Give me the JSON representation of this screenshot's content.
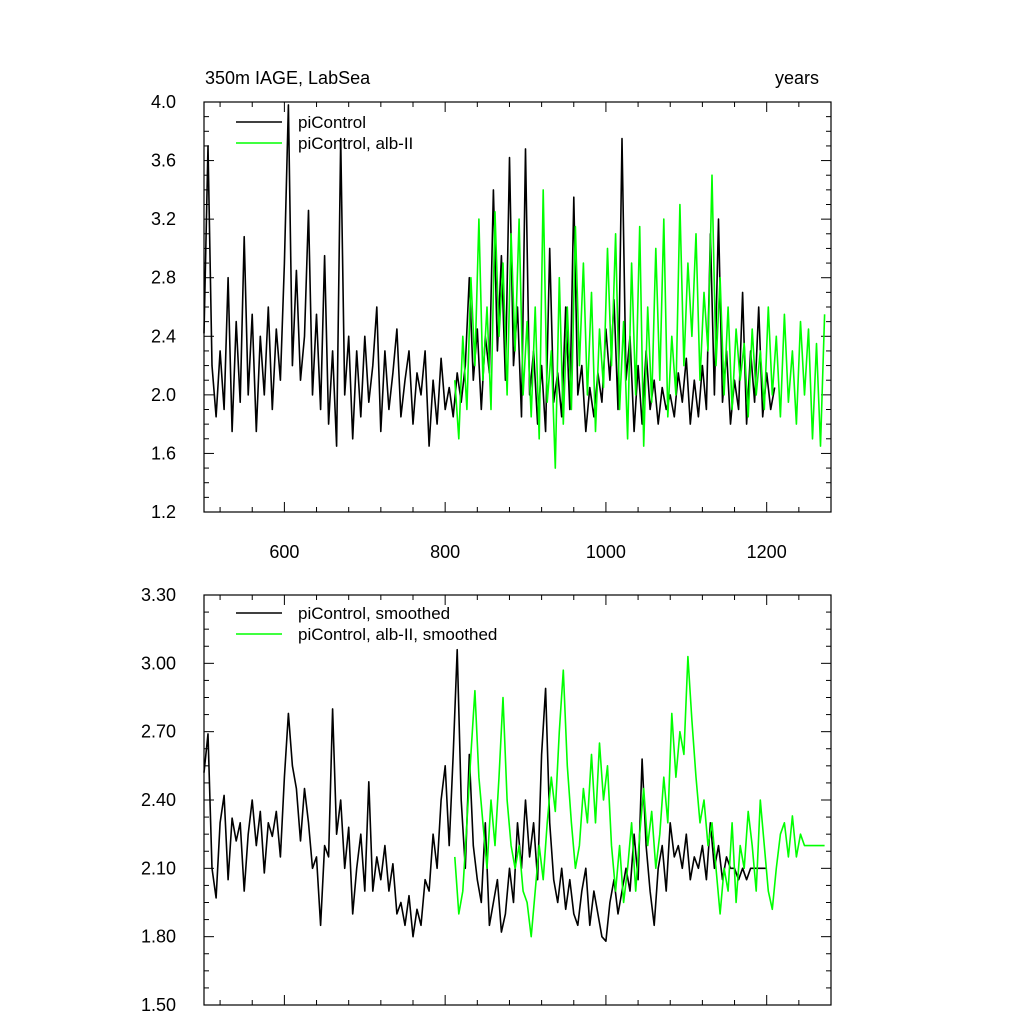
{
  "chart_data": [
    {
      "type": "line",
      "title_left": "350m IAGE, LabSea",
      "title_right": "years",
      "xlim": [
        500,
        1280
      ],
      "ylim": [
        1.2,
        4.0
      ],
      "xticks": [
        600,
        800,
        1000,
        1200
      ],
      "xtick_labels": [
        "600",
        "800",
        "1000",
        "1200"
      ],
      "yticks": [
        1.2,
        1.6,
        2.0,
        2.4,
        2.8,
        3.2,
        3.6,
        4.0
      ],
      "ytick_labels": [
        "1.2",
        "1.6",
        "2.0",
        "2.4",
        "2.8",
        "3.2",
        "3.6",
        "4.0"
      ],
      "legend_position": "top-left",
      "series": [
        {
          "name": "piControl",
          "color": "#000000",
          "x": [
            500,
            505,
            510,
            515,
            520,
            525,
            530,
            535,
            540,
            545,
            550,
            555,
            560,
            565,
            570,
            575,
            580,
            585,
            590,
            595,
            600,
            605,
            610,
            615,
            620,
            625,
            630,
            635,
            640,
            645,
            650,
            655,
            660,
            665,
            670,
            675,
            680,
            685,
            690,
            695,
            700,
            705,
            710,
            715,
            720,
            725,
            730,
            735,
            740,
            745,
            750,
            755,
            760,
            765,
            770,
            775,
            780,
            785,
            790,
            795,
            800,
            805,
            810,
            815,
            820,
            825,
            830,
            835,
            840,
            845,
            850,
            855,
            860,
            865,
            870,
            875,
            880,
            885,
            890,
            895,
            900,
            905,
            910,
            915,
            920,
            925,
            930,
            935,
            940,
            945,
            950,
            955,
            960,
            965,
            970,
            975,
            980,
            985,
            990,
            995,
            1000,
            1005,
            1010,
            1015,
            1020,
            1025,
            1030,
            1035,
            1040,
            1045,
            1050,
            1055,
            1060,
            1065,
            1070,
            1075,
            1080,
            1085,
            1090,
            1095,
            1100,
            1105,
            1110,
            1115,
            1120,
            1125,
            1130,
            1135,
            1140,
            1145,
            1150,
            1155,
            1160,
            1165,
            1170,
            1175,
            1180,
            1185,
            1190,
            1195,
            1200,
            1205,
            1210
          ],
          "y": [
            2.42,
            3.7,
            2.2,
            1.85,
            2.3,
            1.9,
            2.8,
            1.75,
            2.5,
            1.95,
            3.08,
            2.0,
            2.55,
            1.75,
            2.4,
            2.0,
            2.6,
            1.9,
            2.45,
            2.1,
            2.9,
            3.98,
            2.2,
            2.85,
            2.1,
            2.4,
            3.26,
            2.0,
            2.55,
            1.9,
            2.95,
            1.8,
            2.3,
            1.65,
            3.75,
            2.0,
            2.4,
            1.7,
            2.3,
            1.85,
            2.4,
            1.95,
            2.2,
            2.6,
            1.75,
            2.3,
            1.9,
            2.15,
            2.45,
            1.85,
            2.1,
            2.3,
            1.8,
            2.15,
            2.0,
            2.3,
            1.65,
            2.1,
            1.8,
            2.25,
            1.9,
            2.05,
            1.85,
            2.15,
            1.95,
            2.2,
            2.8,
            2.1,
            2.45,
            1.9,
            2.4,
            2.15,
            3.4,
            2.3,
            2.95,
            2.1,
            3.62,
            2.2,
            2.6,
            1.85,
            3.68,
            2.0,
            2.3,
            1.8,
            2.2,
            1.75,
            3.0,
            1.95,
            2.15,
            1.85,
            2.6,
            1.9,
            3.35,
            2.0,
            2.2,
            1.75,
            2.05,
            1.85,
            2.15,
            1.95,
            2.45,
            2.1,
            2.65,
            1.9,
            3.75,
            2.1,
            2.4,
            1.75,
            2.2,
            1.8,
            2.3,
            1.9,
            2.1,
            1.8,
            2.05,
            1.9,
            2.0,
            1.85,
            2.15,
            1.95,
            2.25,
            1.8,
            2.1,
            1.85,
            2.2,
            1.9,
            3.1,
            2.0,
            3.2,
            1.95,
            2.3,
            1.8,
            2.1,
            1.9,
            2.7,
            1.8,
            2.3,
            1.95,
            2.6,
            1.85,
            2.15,
            1.9,
            2.05
          ]
        },
        {
          "name": "piControl, alb-II",
          "color": "#00ff00",
          "x": [
            812,
            817,
            822,
            827,
            832,
            837,
            842,
            847,
            852,
            857,
            862,
            867,
            872,
            877,
            882,
            887,
            892,
            897,
            902,
            907,
            912,
            917,
            922,
            927,
            932,
            937,
            942,
            947,
            952,
            957,
            962,
            967,
            972,
            977,
            982,
            987,
            992,
            997,
            1002,
            1007,
            1012,
            1017,
            1022,
            1027,
            1032,
            1037,
            1042,
            1047,
            1052,
            1057,
            1062,
            1067,
            1072,
            1077,
            1082,
            1087,
            1092,
            1097,
            1102,
            1107,
            1112,
            1117,
            1122,
            1127,
            1132,
            1137,
            1142,
            1147,
            1152,
            1157,
            1162,
            1167,
            1172,
            1177,
            1182,
            1187,
            1192,
            1197,
            1202,
            1207,
            1212,
            1217,
            1222,
            1227,
            1232,
            1237,
            1242,
            1247,
            1252,
            1257,
            1262,
            1267,
            1272
          ],
          "y": [
            2.1,
            1.7,
            2.4,
            1.9,
            2.8,
            2.2,
            3.2,
            2.1,
            2.6,
            1.9,
            3.25,
            2.4,
            2.9,
            2.0,
            3.1,
            2.3,
            3.2,
            2.0,
            2.5,
            1.85,
            2.6,
            1.7,
            3.4,
            1.95,
            2.3,
            1.5,
            2.8,
            1.8,
            2.6,
            1.9,
            3.15,
            2.2,
            2.9,
            2.0,
            2.7,
            1.75,
            2.45,
            2.05,
            3.0,
            2.2,
            3.1,
            1.9,
            2.5,
            1.7,
            2.9,
            2.0,
            3.15,
            1.65,
            2.6,
            1.95,
            3.0,
            2.1,
            3.2,
            1.85,
            2.4,
            2.0,
            3.3,
            2.2,
            2.9,
            2.4,
            3.1,
            2.1,
            2.7,
            2.3,
            3.5,
            2.2,
            2.8,
            2.0,
            2.6,
            1.9,
            2.45,
            2.1,
            2.35,
            1.85,
            2.45,
            2.0,
            2.3,
            1.9,
            2.6,
            2.0,
            2.4,
            1.85,
            2.55,
            1.95,
            2.3,
            1.8,
            2.5,
            2.0,
            2.45,
            1.7,
            2.35,
            1.65,
            2.55
          ]
        }
      ]
    },
    {
      "type": "line",
      "xlim": [
        500,
        1280
      ],
      "ylim": [
        1.5,
        3.3
      ],
      "xticks": [
        600,
        800,
        1000,
        1200
      ],
      "yticks": [
        1.5,
        1.8,
        2.1,
        2.4,
        2.7,
        3.0,
        3.3
      ],
      "ytick_labels": [
        "1.50",
        "1.80",
        "2.10",
        "2.40",
        "2.70",
        "3.00",
        "3.30"
      ],
      "legend_position": "top-left",
      "series": [
        {
          "name": "piControl, smoothed",
          "color": "#000000",
          "x": [
            500,
            505,
            510,
            515,
            520,
            525,
            530,
            535,
            540,
            545,
            550,
            555,
            560,
            565,
            570,
            575,
            580,
            585,
            590,
            595,
            600,
            605,
            610,
            615,
            620,
            625,
            630,
            635,
            640,
            645,
            650,
            655,
            660,
            665,
            670,
            675,
            680,
            685,
            690,
            695,
            700,
            705,
            710,
            715,
            720,
            725,
            730,
            735,
            740,
            745,
            750,
            755,
            760,
            765,
            770,
            775,
            780,
            785,
            790,
            795,
            800,
            805,
            810,
            815,
            820,
            825,
            830,
            835,
            840,
            845,
            850,
            855,
            860,
            865,
            870,
            875,
            880,
            885,
            890,
            895,
            900,
            905,
            910,
            915,
            920,
            925,
            930,
            935,
            940,
            945,
            950,
            955,
            960,
            965,
            970,
            975,
            980,
            985,
            990,
            995,
            1000,
            1005,
            1010,
            1015,
            1020,
            1025,
            1030,
            1035,
            1040,
            1045,
            1050,
            1055,
            1060,
            1065,
            1070,
            1075,
            1080,
            1085,
            1090,
            1095,
            1100,
            1105,
            1110,
            1115,
            1120,
            1125,
            1130,
            1135,
            1140,
            1145,
            1150,
            1155,
            1160,
            1165,
            1170,
            1175,
            1180,
            1185,
            1190,
            1195,
            1200
          ],
          "y": [
            2.52,
            2.69,
            2.1,
            1.97,
            2.3,
            2.42,
            2.05,
            2.32,
            2.22,
            2.3,
            2.0,
            2.25,
            2.4,
            2.2,
            2.35,
            2.08,
            2.3,
            2.24,
            2.35,
            2.15,
            2.5,
            2.78,
            2.55,
            2.45,
            2.22,
            2.45,
            2.3,
            2.1,
            2.15,
            1.85,
            2.2,
            2.15,
            2.8,
            2.25,
            2.4,
            2.1,
            2.28,
            1.9,
            2.1,
            2.25,
            2.0,
            2.48,
            2.0,
            2.15,
            2.05,
            2.2,
            2.0,
            2.12,
            1.9,
            1.95,
            1.85,
            1.98,
            1.8,
            1.92,
            1.85,
            2.05,
            2.0,
            2.25,
            2.1,
            2.4,
            2.55,
            2.2,
            2.6,
            3.06,
            2.4,
            2.1,
            2.6,
            2.2,
            2.05,
            1.95,
            2.3,
            1.85,
            1.95,
            2.05,
            1.82,
            1.9,
            2.1,
            1.95,
            2.3,
            2.1,
            2.4,
            2.15,
            2.3,
            2.05,
            2.6,
            2.89,
            2.3,
            2.05,
            1.95,
            2.1,
            1.92,
            2.05,
            1.9,
            1.85,
            2.0,
            2.1,
            1.85,
            2.0,
            1.9,
            1.8,
            1.78,
            1.95,
            2.05,
            1.9,
            2.0,
            2.1,
            2.0,
            2.25,
            2.05,
            2.58,
            2.2,
            2.0,
            1.85,
            2.1,
            2.2,
            2.0,
            2.3,
            2.15,
            2.2,
            2.1,
            2.25,
            2.05,
            2.15,
            2.1,
            2.2,
            2.05,
            2.3,
            2.1,
            2.2,
            2.05,
            2.15,
            2.1,
            2.1,
            2.05,
            2.1,
            2.05,
            2.1,
            2.1,
            2.1,
            2.1,
            2.1
          ]
        },
        {
          "name": "piControl, alb-II, smoothed",
          "color": "#00ff00",
          "x": [
            812,
            817,
            822,
            827,
            832,
            837,
            842,
            847,
            852,
            857,
            862,
            867,
            872,
            877,
            882,
            887,
            892,
            897,
            902,
            907,
            912,
            917,
            922,
            927,
            932,
            937,
            942,
            947,
            952,
            957,
            962,
            967,
            972,
            977,
            982,
            987,
            992,
            997,
            1002,
            1007,
            1012,
            1017,
            1022,
            1027,
            1032,
            1037,
            1042,
            1047,
            1052,
            1057,
            1062,
            1067,
            1072,
            1077,
            1082,
            1087,
            1092,
            1097,
            1102,
            1107,
            1112,
            1117,
            1122,
            1127,
            1132,
            1137,
            1142,
            1147,
            1152,
            1157,
            1162,
            1167,
            1172,
            1177,
            1182,
            1187,
            1192,
            1197,
            1202,
            1207,
            1212,
            1217,
            1222,
            1227,
            1232,
            1237,
            1242,
            1247,
            1252,
            1257,
            1262,
            1267,
            1272
          ],
          "y": [
            2.15,
            1.9,
            2.0,
            2.3,
            2.6,
            2.88,
            2.5,
            2.3,
            2.1,
            2.4,
            2.2,
            2.5,
            2.85,
            2.4,
            2.2,
            2.1,
            2.2,
            2.0,
            1.95,
            1.8,
            2.0,
            2.2,
            2.05,
            2.3,
            2.5,
            2.35,
            2.7,
            2.97,
            2.55,
            2.3,
            2.1,
            2.2,
            2.45,
            2.3,
            2.6,
            2.3,
            2.65,
            2.4,
            2.55,
            2.2,
            2.0,
            2.2,
            1.95,
            2.1,
            2.3,
            2.0,
            2.25,
            2.45,
            2.2,
            2.35,
            2.1,
            2.25,
            2.5,
            2.3,
            2.78,
            2.5,
            2.7,
            2.6,
            3.03,
            2.75,
            2.5,
            2.3,
            2.4,
            2.2,
            2.3,
            2.1,
            1.9,
            2.1,
            2.0,
            2.3,
            1.95,
            2.2,
            2.1,
            2.35,
            2.2,
            2.0,
            2.4,
            2.2,
            2.0,
            1.92,
            2.1,
            2.25,
            2.3,
            2.15,
            2.33,
            2.15,
            2.25,
            2.2,
            2.2,
            2.2,
            2.2,
            2.2,
            2.2
          ]
        }
      ]
    }
  ]
}
